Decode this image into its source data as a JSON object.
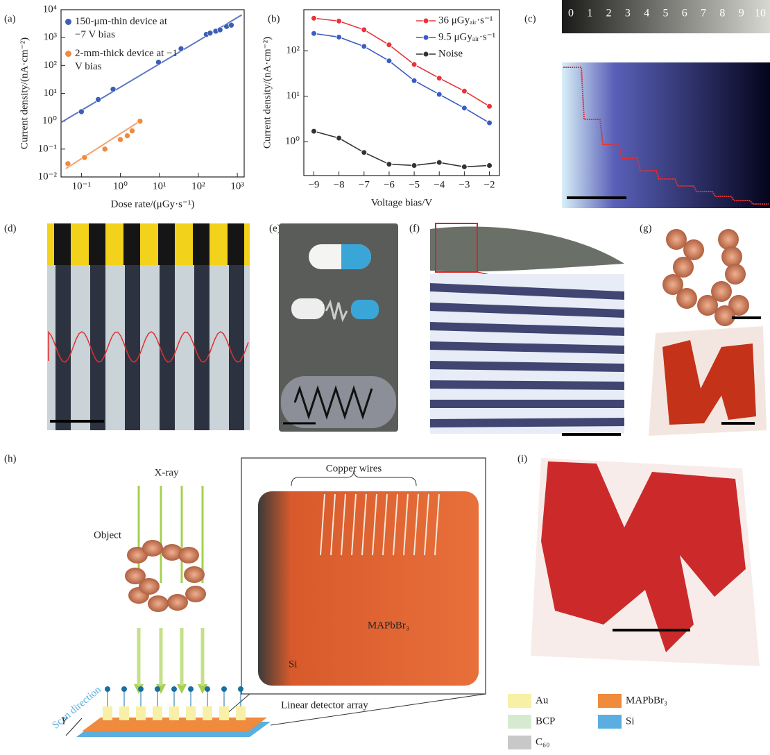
{
  "panels": [
    "(a)",
    "(b)",
    "(c)",
    "(d)",
    "(e)",
    "(f)",
    "(g)",
    "(h)",
    "(i)"
  ],
  "chart_data": [
    {
      "type": "scatter",
      "x_label": "Dose rate/(μGy·s⁻¹)",
      "y_label": "Current density/(nA·cm⁻²)",
      "xlog": true,
      "ylog": true,
      "xlim": [
        0.03,
        1500
      ],
      "ylim": [
        0.01,
        10000
      ],
      "xticks": [
        {
          "value": 0.1,
          "label": "10⁻¹"
        },
        {
          "value": 1,
          "label": "10⁰"
        },
        {
          "value": 10,
          "label": "10¹"
        },
        {
          "value": 100,
          "label": "10²"
        },
        {
          "value": 1000,
          "label": "10³"
        }
      ],
      "yticks": [
        {
          "value": 0.01,
          "label": "10⁻²"
        },
        {
          "value": 0.1,
          "label": "10⁻¹"
        },
        {
          "value": 1,
          "label": "10⁰"
        },
        {
          "value": 10,
          "label": "10¹"
        },
        {
          "value": 100,
          "label": "10²"
        },
        {
          "value": 1000,
          "label": "10³"
        },
        {
          "value": 10000,
          "label": "10⁴"
        }
      ],
      "series": [
        {
          "name": "150-μm-thin device at −7 V bias",
          "color": "#3a5fb5",
          "x": [
            0.1,
            0.27,
            0.65,
            9.5,
            36,
            160,
            200,
            280,
            360,
            530,
            700
          ],
          "values": [
            2.2,
            6,
            14,
            130,
            400,
            1300,
            1450,
            1700,
            1900,
            2500,
            2800
          ],
          "fit_color": "#5a78c0",
          "fit_x": [
            0.03,
            1300
          ],
          "fit_y": [
            0.9,
            6500
          ]
        },
        {
          "name": "2-mm-thick device at −1 V bias",
          "color": "#f08a3c",
          "x": [
            0.045,
            0.12,
            0.4,
            1,
            1.5,
            2,
            3.2
          ],
          "values": [
            0.03,
            0.05,
            0.1,
            0.22,
            0.3,
            0.45,
            1.0
          ],
          "fit_color": "#f4a070",
          "fit_x": [
            0.04,
            3.5
          ],
          "fit_y": [
            0.02,
            1.1
          ]
        }
      ]
    },
    {
      "type": "line",
      "x_label": "Voltage bias/V",
      "y_label": "Current density/(nA·cm⁻²)",
      "ylog": true,
      "xlim": [
        -9.4,
        -1.6
      ],
      "ylim": [
        0.18,
        800
      ],
      "xticks": [
        {
          "value": -9,
          "label": "−9"
        },
        {
          "value": -8,
          "label": "−8"
        },
        {
          "value": -7,
          "label": "−7"
        },
        {
          "value": -6,
          "label": "−6"
        },
        {
          "value": -5,
          "label": "−5"
        },
        {
          "value": -4,
          "label": "−4"
        },
        {
          "value": -3,
          "label": "−3"
        },
        {
          "value": -2,
          "label": "−2"
        }
      ],
      "yticks": [
        {
          "value": 1,
          "label": "10⁰"
        },
        {
          "value": 10,
          "label": "10¹"
        },
        {
          "value": 100,
          "label": "10²"
        }
      ],
      "x": [
        -9,
        -8,
        -7,
        -6,
        -5,
        -4,
        -3,
        -2
      ],
      "series": [
        {
          "name": "36 μGyₐᵢᵣ·s⁻¹",
          "color": "#e8343c",
          "values": [
            520,
            450,
            290,
            135,
            50,
            25,
            13,
            6
          ]
        },
        {
          "name": "9.5 μGyₐᵢᵣ·s⁻¹",
          "color": "#3a5cc4",
          "values": [
            240,
            200,
            125,
            60,
            22,
            11,
            5.5,
            2.6
          ]
        },
        {
          "name": "Noise",
          "color": "#333333",
          "values": [
            1.7,
            1.2,
            0.58,
            0.32,
            0.3,
            0.35,
            0.28,
            0.3
          ]
        }
      ]
    }
  ],
  "panel_c": {
    "labels": [
      "0",
      "1",
      "2",
      "3",
      "4",
      "5",
      "6",
      "7",
      "8",
      "9",
      "10"
    ]
  },
  "panel_h": {
    "xray": "X-ray",
    "object": "Object",
    "copper_wires": "Copper wires",
    "material": "MAPbBr₃",
    "si": "Si",
    "array": "Linear detector array",
    "scan": "Scan direction",
    "axis": "Y"
  },
  "legend_i": [
    {
      "label": "Au",
      "color": "#f7f0a6"
    },
    {
      "label": "BCP",
      "color": "#d6ead2"
    },
    {
      "label": "C₆₀",
      "color": "#c8c8c8"
    },
    {
      "label": "MAPbBr₃",
      "color": "#f08a3c"
    },
    {
      "label": "Si",
      "color": "#5aaee0"
    }
  ]
}
